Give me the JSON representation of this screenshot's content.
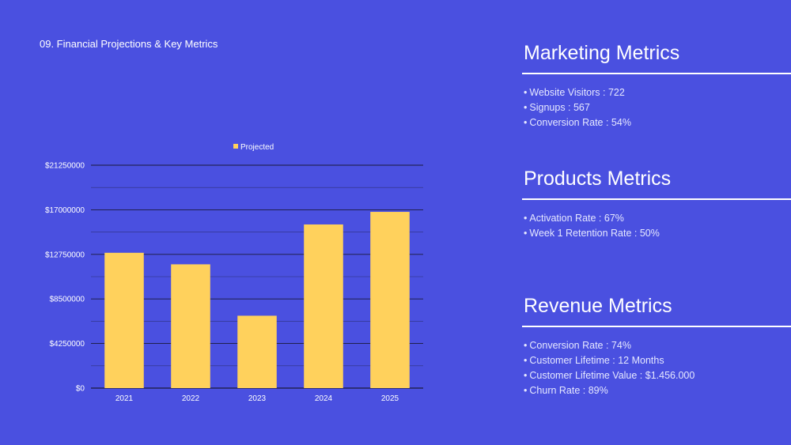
{
  "slide": {
    "title": "09. Financial Projections & Key Metrics"
  },
  "chart_data": {
    "type": "bar",
    "legend_position": "top",
    "grid": true,
    "series": [
      {
        "name": "Projected",
        "color": "#FFD15C",
        "values": [
          12900000,
          11800000,
          6900000,
          15600000,
          16800000
        ]
      }
    ],
    "categories": [
      "2021",
      "2022",
      "2023",
      "2024",
      "2025"
    ],
    "y_ticks": [
      "$0",
      "$4250000",
      "$8500000",
      "$12750000",
      "$17000000",
      "$21250000"
    ],
    "ylim": [
      0,
      21250000
    ]
  },
  "metrics": {
    "marketing": {
      "title": "Marketing Metrics",
      "items": [
        "Website Visitors : 722",
        "Signups : 567",
        "Conversion Rate : 54%"
      ]
    },
    "products": {
      "title": "Products Metrics",
      "items": [
        "Activation Rate : 67%",
        "Week 1 Retention Rate : 50%"
      ]
    },
    "revenue": {
      "title": "Revenue Metrics",
      "items": [
        "Conversion Rate : 74%",
        "Customer Lifetime : 12 Months",
        "Customer Lifetime Value : $1.456.000",
        "Churn Rate : 89%"
      ]
    }
  },
  "colors": {
    "background": "#4A50E0",
    "bar": "#FFD15C",
    "gridline": "#1a1a3a",
    "text": "#ffffff"
  }
}
